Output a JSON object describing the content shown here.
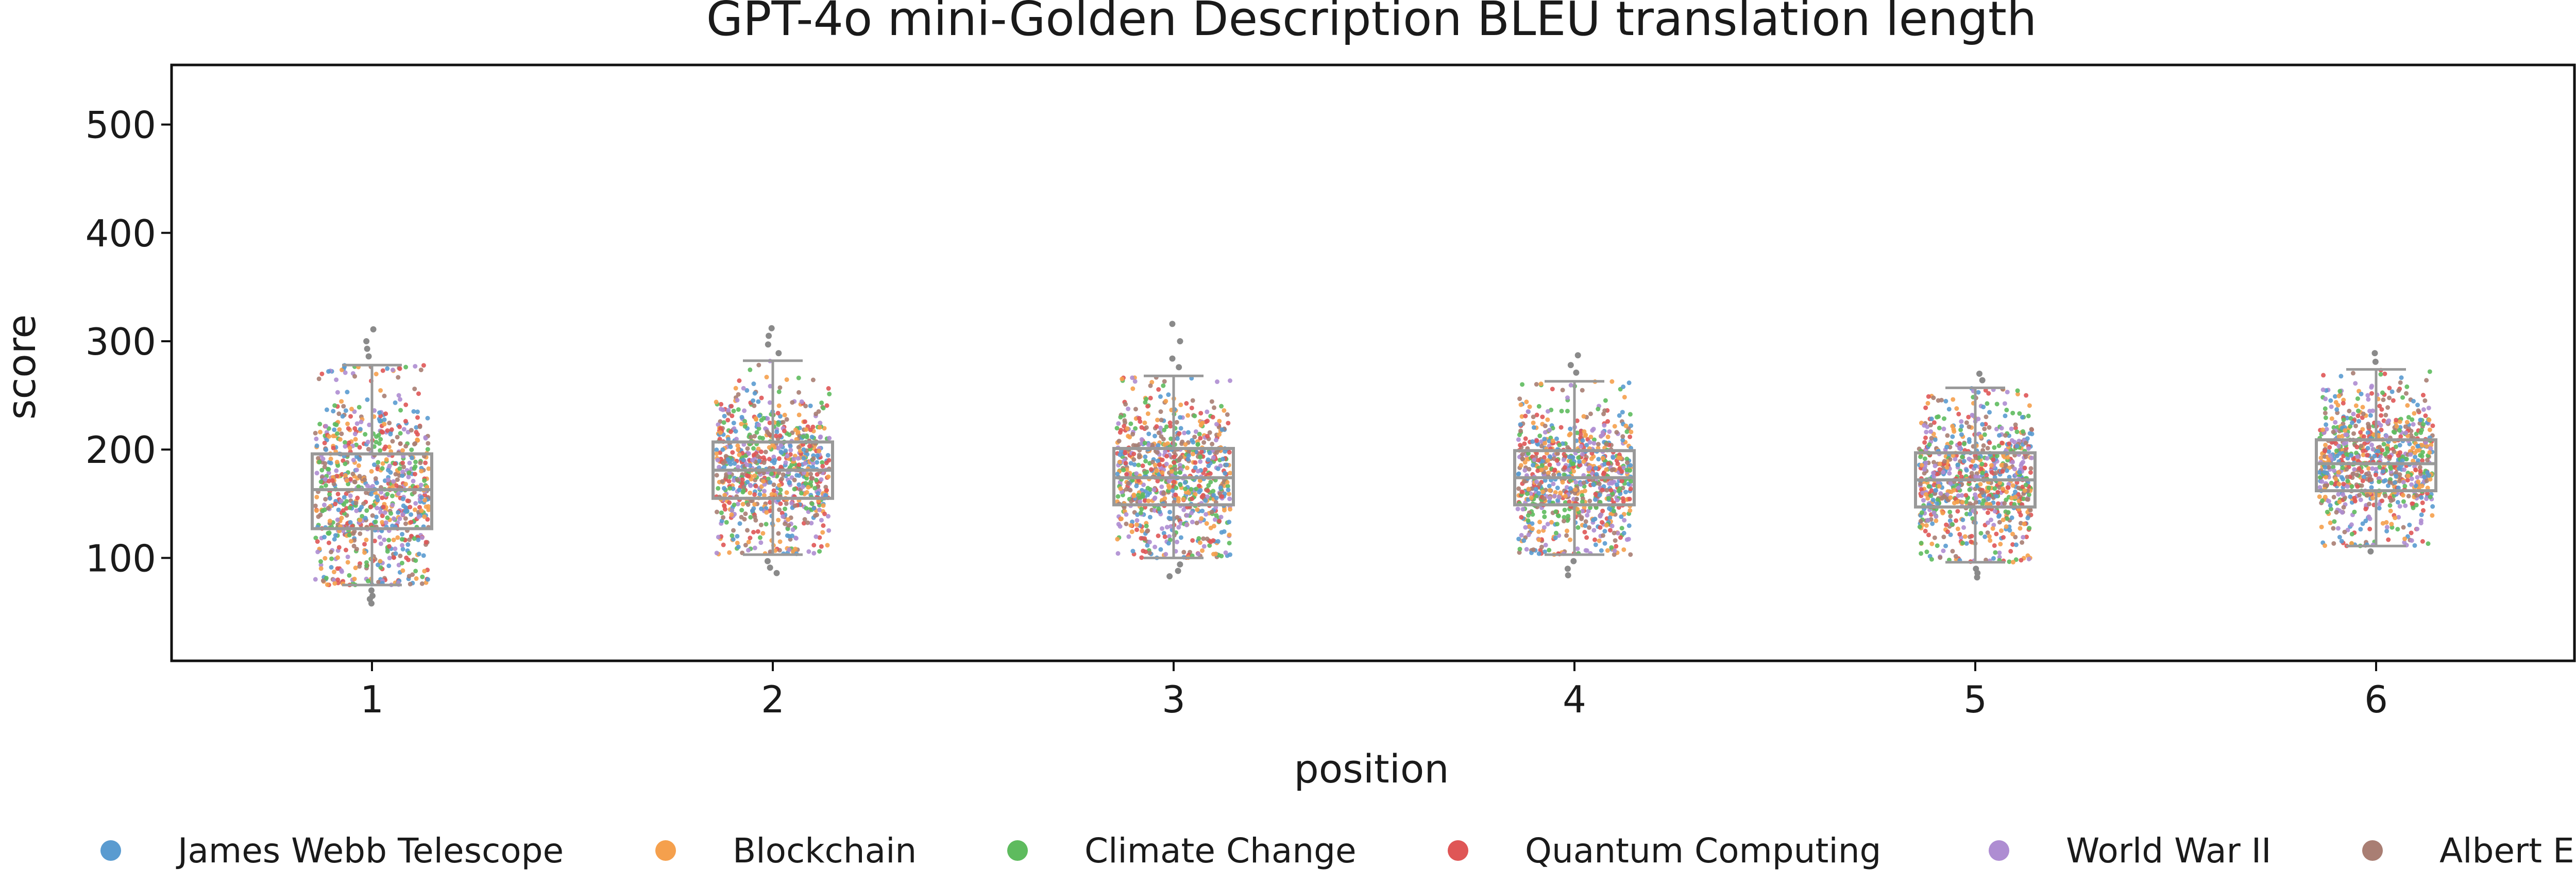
{
  "chart_data": {
    "type": "box-strip",
    "title": "GPT-4o mini-Golden Description BLEU translation length",
    "xlabel": "position",
    "ylabel": "score",
    "categories": [
      "1",
      "2",
      "3",
      "4",
      "5",
      "6"
    ],
    "ylim": [
      5,
      555
    ],
    "yticks": [
      100,
      200,
      300,
      400,
      500
    ],
    "grid": false,
    "legend_position": "bottom",
    "boxes": [
      {
        "position": "1",
        "whisker_low": 75,
        "q1": 127,
        "median": 163,
        "q3": 196,
        "whisker_high": 278,
        "outliers": [
          286,
          293,
          300,
          311,
          70,
          65,
          62,
          58
        ]
      },
      {
        "position": "2",
        "whisker_low": 103,
        "q1": 155,
        "median": 181,
        "q3": 207,
        "whisker_high": 282,
        "outliers": [
          289,
          297,
          305,
          312,
          97,
          91,
          86
        ]
      },
      {
        "position": "3",
        "whisker_low": 100,
        "q1": 149,
        "median": 174,
        "q3": 201,
        "whisker_high": 268,
        "outliers": [
          276,
          284,
          300,
          316,
          94,
          88,
          83
        ]
      },
      {
        "position": "4",
        "whisker_low": 103,
        "q1": 149,
        "median": 174,
        "q3": 199,
        "whisker_high": 263,
        "outliers": [
          271,
          278,
          287,
          97,
          90,
          84
        ]
      },
      {
        "position": "5",
        "whisker_low": 96,
        "q1": 147,
        "median": 172,
        "q3": 197,
        "whisker_high": 257,
        "outliers": [
          264,
          270,
          90,
          86,
          82
        ]
      },
      {
        "position": "6",
        "whisker_low": 111,
        "q1": 162,
        "median": 187,
        "q3": 209,
        "whisker_high": 274,
        "outliers": [
          281,
          289,
          106
        ]
      }
    ],
    "series": [
      {
        "name": "James Webb Telescope",
        "color": "#5a9bd0"
      },
      {
        "name": "Blockchain",
        "color": "#f5a04d"
      },
      {
        "name": "Climate Change",
        "color": "#5ebb5e"
      },
      {
        "name": "Quantum Computing",
        "color": "#df5656"
      },
      {
        "name": "World War II",
        "color": "#ae8dd2"
      },
      {
        "name": "Albert Einstein",
        "color": "#a97e73"
      }
    ],
    "box_color": "#999999"
  }
}
